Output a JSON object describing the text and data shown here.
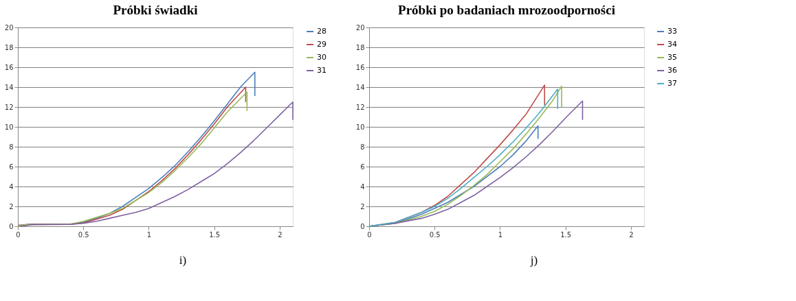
{
  "chart_data": [
    {
      "type": "line",
      "title": "Próbki świadki",
      "annotations": [
        "i)"
      ],
      "xlim": [
        0,
        2.1
      ],
      "xticks": [
        0,
        0.5,
        1,
        1.5,
        2
      ],
      "ylim": [
        0,
        20
      ],
      "yticks": [
        0,
        2,
        4,
        6,
        8,
        10,
        12,
        14,
        16,
        18,
        20
      ],
      "grid": "y",
      "legend": "right",
      "marker": "none",
      "line_style": "solid",
      "series": [
        {
          "name": "28",
          "color": "#4a7ebb",
          "x": [
            0,
            0.1,
            0.4,
            0.5,
            0.6,
            0.7,
            0.8,
            0.9,
            1.0,
            1.1,
            1.2,
            1.3,
            1.4,
            1.5,
            1.6,
            1.7,
            1.81,
            1.81
          ],
          "values": [
            0.1,
            0.2,
            0.2,
            0.4,
            0.8,
            1.3,
            2.0,
            2.9,
            3.8,
            4.9,
            6.1,
            7.5,
            9.0,
            10.6,
            12.3,
            14.0,
            15.5,
            13.1
          ]
        },
        {
          "name": "29",
          "color": "#be4b48",
          "x": [
            0,
            0.07,
            0.4,
            0.5,
            0.6,
            0.7,
            0.8,
            0.9,
            1.0,
            1.1,
            1.2,
            1.3,
            1.4,
            1.5,
            1.6,
            1.74,
            1.74
          ],
          "values": [
            0.05,
            0.18,
            0.2,
            0.35,
            0.7,
            1.1,
            1.7,
            2.6,
            3.5,
            4.6,
            5.8,
            7.2,
            8.7,
            10.3,
            12.0,
            14.0,
            12.5
          ]
        },
        {
          "name": "30",
          "color": "#98b954",
          "x": [
            0,
            0.05,
            0.4,
            0.5,
            0.6,
            0.7,
            0.8,
            0.9,
            1.0,
            1.1,
            1.2,
            1.3,
            1.4,
            1.5,
            1.6,
            1.75,
            1.75
          ],
          "values": [
            0,
            0.15,
            0.2,
            0.5,
            0.9,
            1.3,
            1.8,
            2.6,
            3.4,
            4.4,
            5.6,
            6.9,
            8.3,
            9.9,
            11.5,
            13.5,
            11.6
          ]
        },
        {
          "name": "31",
          "color": "#7d60a0",
          "x": [
            0.02,
            0.12,
            0.4,
            0.5,
            0.6,
            0.7,
            0.8,
            0.9,
            1.0,
            1.1,
            1.2,
            1.3,
            1.4,
            1.5,
            1.6,
            1.7,
            1.8,
            1.9,
            2.0,
            2.1,
            2.1
          ],
          "values": [
            0,
            0.17,
            0.2,
            0.3,
            0.5,
            0.8,
            1.1,
            1.4,
            1.8,
            2.4,
            3.0,
            3.7,
            4.5,
            5.3,
            6.3,
            7.4,
            8.6,
            9.9,
            11.2,
            12.5,
            10.7
          ]
        }
      ]
    },
    {
      "type": "line",
      "title": "Próbki po badaniach mrozoodporności",
      "annotations": [
        "j)"
      ],
      "xlim": [
        0,
        2.1
      ],
      "xticks": [
        0,
        0.5,
        1,
        1.5,
        2
      ],
      "ylim": [
        0,
        20
      ],
      "yticks": [
        0,
        2,
        4,
        6,
        8,
        10,
        12,
        14,
        16,
        18,
        20
      ],
      "grid": "y",
      "legend": "right",
      "marker": "none",
      "line_style": "solid",
      "series": [
        {
          "name": "33",
          "color": "#4a7ebb",
          "x": [
            0,
            0.2,
            0.4,
            0.6,
            0.8,
            1.0,
            1.1,
            1.2,
            1.29,
            1.29
          ],
          "values": [
            0,
            0.3,
            1.2,
            2.4,
            4.0,
            6.0,
            7.2,
            8.6,
            10.1,
            8.8
          ]
        },
        {
          "name": "34",
          "color": "#be4b48",
          "x": [
            0,
            0.2,
            0.4,
            0.5,
            0.6,
            0.7,
            0.8,
            0.9,
            1.0,
            1.1,
            1.2,
            1.34,
            1.34
          ],
          "values": [
            0,
            0.4,
            1.4,
            2.1,
            3.0,
            4.2,
            5.4,
            6.8,
            8.2,
            9.7,
            11.3,
            14.2,
            12.2
          ]
        },
        {
          "name": "35",
          "color": "#98b954",
          "x": [
            0,
            0.2,
            0.4,
            0.5,
            0.6,
            0.7,
            0.8,
            0.9,
            1.0,
            1.1,
            1.2,
            1.3,
            1.4,
            1.47,
            1.47
          ],
          "values": [
            0,
            0.3,
            1.0,
            1.5,
            2.2,
            3.1,
            4.1,
            5.2,
            6.5,
            7.8,
            9.3,
            10.9,
            12.6,
            14.1,
            12.0
          ]
        },
        {
          "name": "36",
          "color": "#7d60a0",
          "x": [
            0,
            0.2,
            0.4,
            0.5,
            0.6,
            0.7,
            0.8,
            0.9,
            1.0,
            1.1,
            1.2,
            1.3,
            1.4,
            1.5,
            1.63,
            1.63
          ],
          "values": [
            0,
            0.3,
            0.8,
            1.2,
            1.7,
            2.4,
            3.1,
            4.0,
            4.9,
            5.9,
            7.0,
            8.2,
            9.5,
            10.9,
            12.6,
            10.7
          ]
        },
        {
          "name": "37",
          "color": "#4bacc6",
          "x": [
            0,
            0.2,
            0.4,
            0.5,
            0.6,
            0.7,
            0.8,
            0.9,
            1.0,
            1.1,
            1.2,
            1.3,
            1.44,
            1.44
          ],
          "values": [
            0,
            0.4,
            1.4,
            2.0,
            2.8,
            3.8,
            4.9,
            6.0,
            7.2,
            8.5,
            9.9,
            11.4,
            13.8,
            11.8
          ]
        }
      ]
    }
  ]
}
